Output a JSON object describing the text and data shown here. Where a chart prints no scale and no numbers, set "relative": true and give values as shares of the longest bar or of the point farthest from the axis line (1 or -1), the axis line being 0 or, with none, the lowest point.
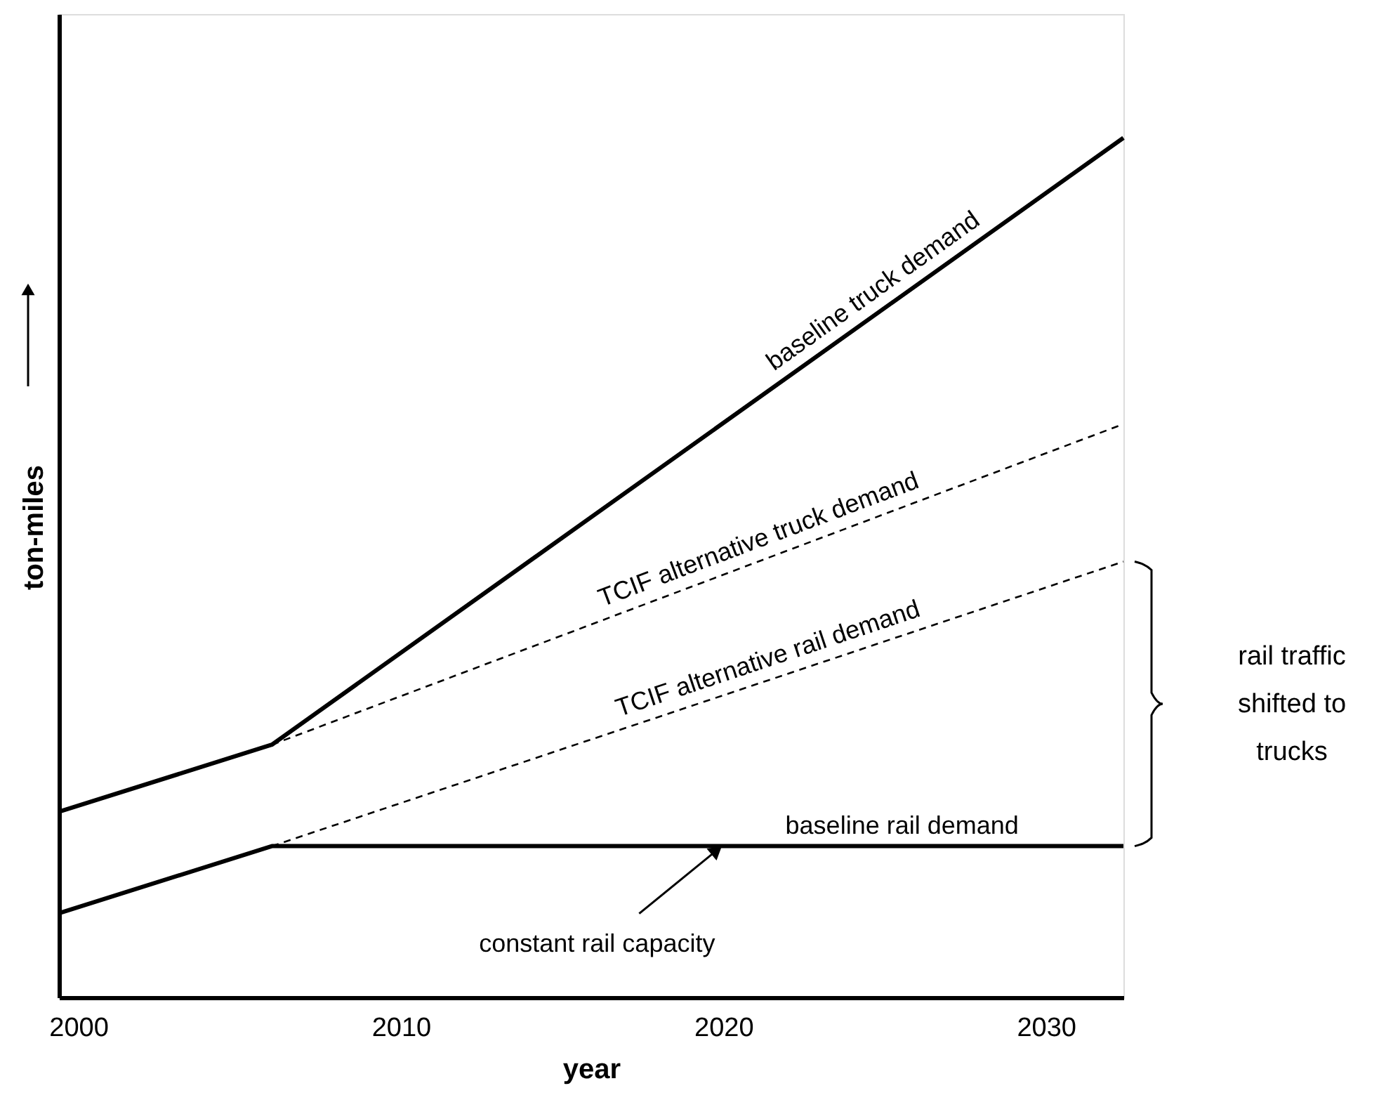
{
  "chart_data": {
    "type": "line",
    "relative": true,
    "xlabel": "year",
    "ylabel": "ton-miles",
    "xlim": [
      1999.4,
      2032.4
    ],
    "xticks": [
      2000,
      2010,
      2020,
      2030
    ],
    "grid": false,
    "marker": "none",
    "series": [
      {
        "name": "baseline truck demand",
        "color": "#000000",
        "line_style": "solid",
        "x": [
          1999.4,
          2006.0,
          2032.4
        ],
        "values": [
          0.216,
          0.294,
          1
        ]
      },
      {
        "name": "TCIF alternative truck demand",
        "color": "#000000",
        "line_style": "dashed",
        "x": [
          2006.0,
          2032.4
        ],
        "values": [
          0.294,
          0.667
        ]
      },
      {
        "name": "TCIF alternative rail demand",
        "color": "#000000",
        "line_style": "dashed",
        "x": [
          2006.0,
          2032.4
        ],
        "values": [
          0.176,
          0.507
        ]
      },
      {
        "name": "baseline rail demand",
        "color": "#000000",
        "line_style": "solid",
        "x": [
          1999.4,
          2006.0,
          2032.4
        ],
        "values": [
          0.098,
          0.176,
          0.176
        ]
      }
    ],
    "annotations": [
      {
        "text": "constant rail capacity",
        "x": 2020.0,
        "y": 0.176
      },
      "rail traffic shifted to trucks"
    ]
  }
}
